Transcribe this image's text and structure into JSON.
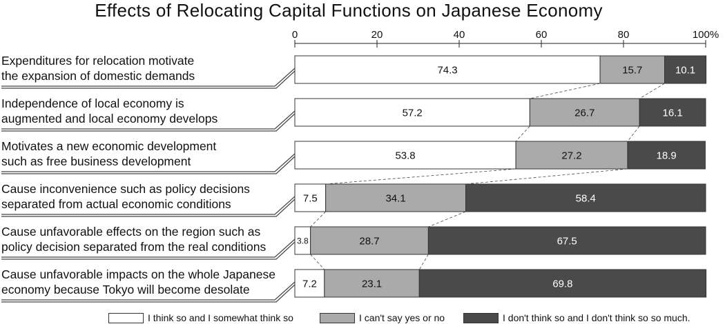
{
  "chart_data": {
    "type": "bar",
    "orientation": "horizontal",
    "stacked": true,
    "title": "Effects of Relocating Capital Functions on Japanese Economy",
    "xlim": [
      0,
      100
    ],
    "xticks": [
      "0",
      "20",
      "40",
      "60",
      "80",
      "100%"
    ],
    "categories": [
      "Expenditures for relocation motivate the expansion of domestic demands",
      "Independence of local economy is augmented and local economy develops",
      "Motivates a new economic development such as free business development",
      "Cause inconvenience such as policy decisions separated from actual economic conditions",
      "Cause unfavorable effects on the region such as policy decision separated from the real conditions",
      "Cause unfavorable impacts on the whole Japanese economy because Tokyo will become desolate"
    ],
    "category_lines": [
      [
        "Expenditures for relocation motivate",
        "the expansion of domestic demands"
      ],
      [
        "Independence of local economy is",
        "augmented and local economy develops"
      ],
      [
        "Motivates a new economic development",
        "such as free business development"
      ],
      [
        "Cause inconvenience such as policy decisions",
        "separated from actual economic conditions"
      ],
      [
        "Cause unfavorable effects on the region such as",
        "policy decision separated from the real conditions"
      ],
      [
        "Cause unfavorable impacts on the whole Japanese",
        "economy because Tokyo will become desolate"
      ]
    ],
    "series": [
      {
        "name": "I think so and I somewhat think so",
        "color": "#ffffff",
        "text_color": "#111111",
        "values": [
          74.3,
          57.2,
          53.8,
          7.5,
          3.8,
          7.2
        ]
      },
      {
        "name": "I can't say yes or no",
        "color": "#aaaaaa",
        "text_color": "#111111",
        "values": [
          15.7,
          26.7,
          27.2,
          34.1,
          28.7,
          23.1
        ]
      },
      {
        "name": "I don't think so and I don't think so so much.",
        "color": "#4a4a4a",
        "text_color": "#ffffff",
        "values": [
          10.1,
          16.1,
          18.9,
          58.4,
          67.5,
          69.8
        ]
      }
    ],
    "data_labels": true,
    "grid": false,
    "legend": "bottom"
  }
}
